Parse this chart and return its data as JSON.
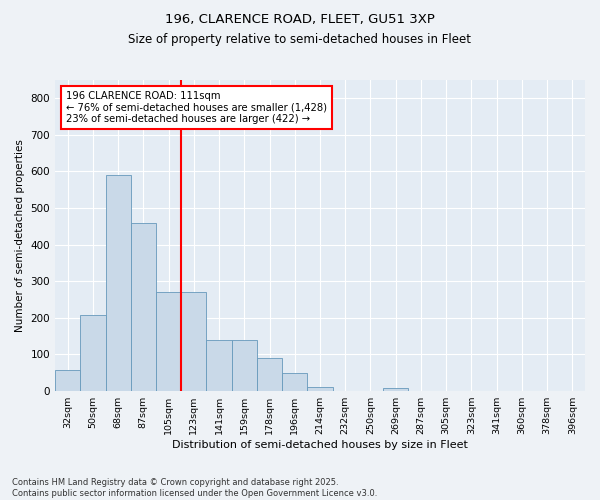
{
  "title1": "196, CLARENCE ROAD, FLEET, GU51 3XP",
  "title2": "Size of property relative to semi-detached houses in Fleet",
  "xlabel": "Distribution of semi-detached houses by size in Fleet",
  "ylabel": "Number of semi-detached properties",
  "categories": [
    "32sqm",
    "50sqm",
    "68sqm",
    "87sqm",
    "105sqm",
    "123sqm",
    "141sqm",
    "159sqm",
    "178sqm",
    "196sqm",
    "214sqm",
    "232sqm",
    "250sqm",
    "269sqm",
    "287sqm",
    "305sqm",
    "323sqm",
    "341sqm",
    "360sqm",
    "378sqm",
    "396sqm"
  ],
  "values": [
    58,
    207,
    590,
    460,
    270,
    270,
    140,
    140,
    90,
    50,
    10,
    0,
    0,
    8,
    0,
    0,
    0,
    0,
    0,
    0,
    0
  ],
  "bar_color": "#c9d9e8",
  "bar_edge_color": "#6699bb",
  "vline_color": "red",
  "annotation_title": "196 CLARENCE ROAD: 111sqm",
  "annotation_line1": "← 76% of semi-detached houses are smaller (1,428)",
  "annotation_line2": "23% of semi-detached houses are larger (422) →",
  "annotation_box_color": "red",
  "annotation_fill": "white",
  "ylim": [
    0,
    850
  ],
  "yticks": [
    0,
    100,
    200,
    300,
    400,
    500,
    600,
    700,
    800
  ],
  "footer_line1": "Contains HM Land Registry data © Crown copyright and database right 2025.",
  "footer_line2": "Contains public sector information licensed under the Open Government Licence v3.0.",
  "bg_color": "#eef2f6",
  "plot_bg_color": "#e4ecf4"
}
